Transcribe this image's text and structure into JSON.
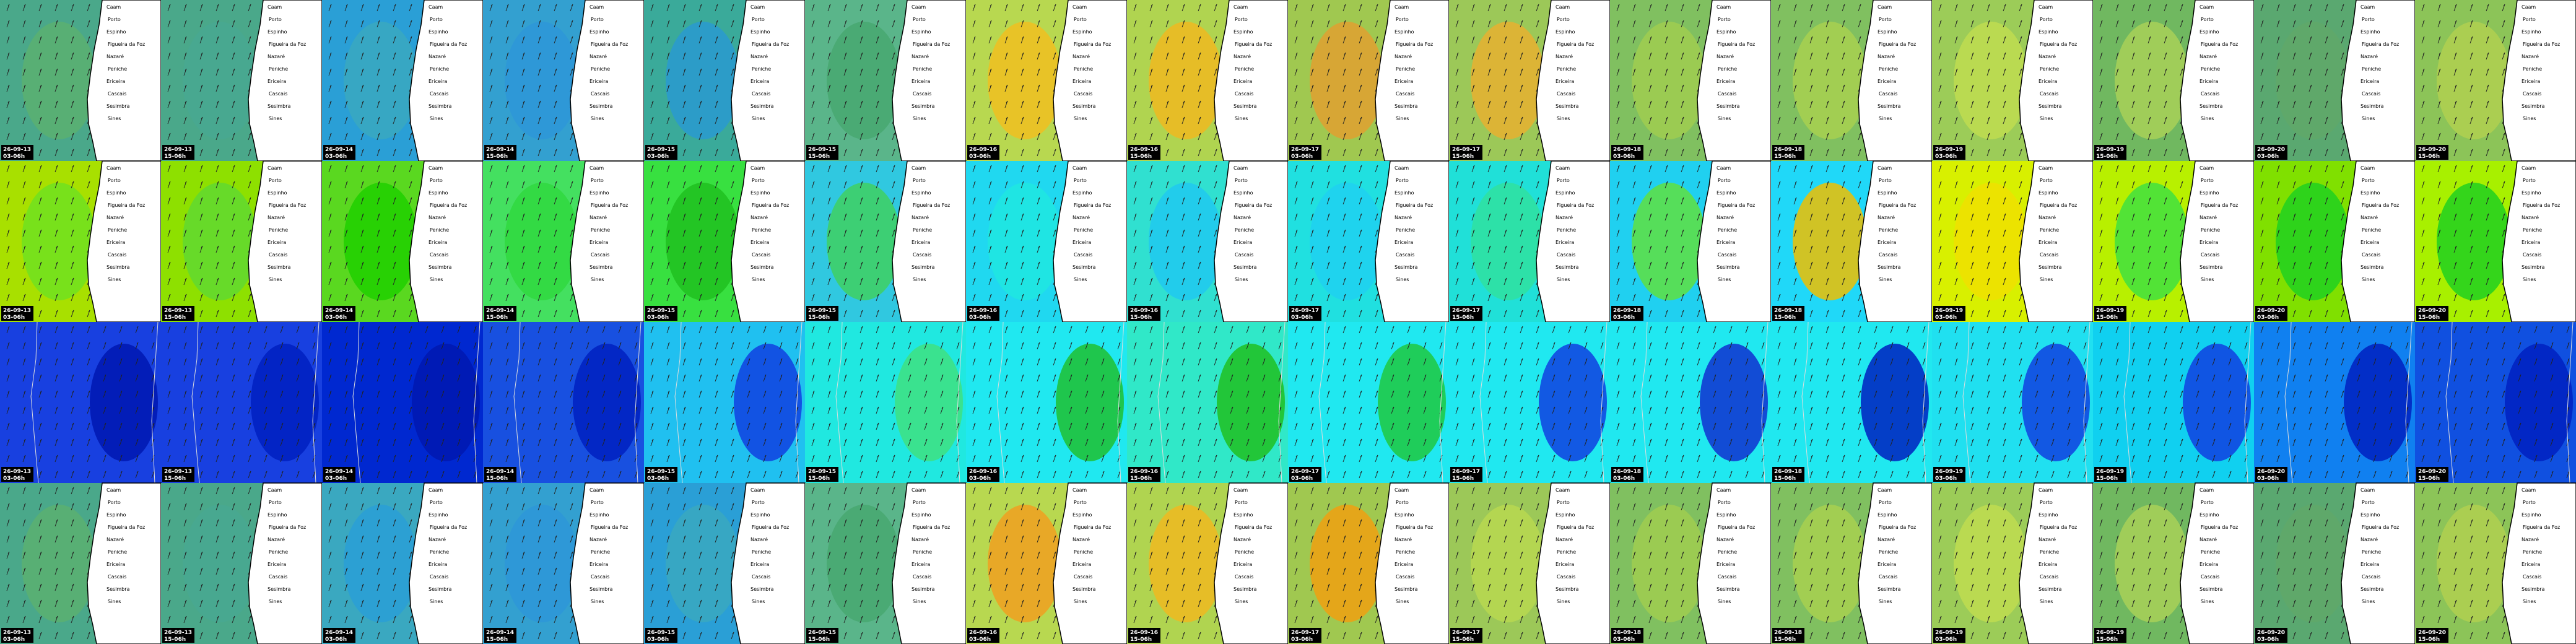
{
  "columns": [
    {
      "date": "26-09-13",
      "time": "03-06h"
    },
    {
      "date": "26-09-13",
      "time": "15-06h"
    },
    {
      "date": "26-09-14",
      "time": "03-06h"
    },
    {
      "date": "26-09-14",
      "time": "15-06h"
    },
    {
      "date": "26-09-15",
      "time": "03-06h"
    },
    {
      "date": "26-09-15",
      "time": "15-06h"
    },
    {
      "date": "26-09-16",
      "time": "03-06h"
    },
    {
      "date": "26-09-16",
      "time": "15-06h"
    },
    {
      "date": "26-09-17",
      "time": "03-06h"
    },
    {
      "date": "26-09-17",
      "time": "15-06h"
    },
    {
      "date": "26-09-18",
      "time": "03-06h"
    },
    {
      "date": "26-09-18",
      "time": "15-06h"
    },
    {
      "date": "26-09-19",
      "time": "03-06h"
    },
    {
      "date": "26-09-19",
      "time": "15-06h"
    },
    {
      "date": "26-09-20",
      "time": "03-06h"
    },
    {
      "date": "26-09-20",
      "time": "15-06h"
    }
  ],
  "places": [
    "Caam",
    "Porto",
    "Espinho",
    "Figueira da Foz",
    "Nazaré",
    "Peniche",
    "Ericeira",
    "Cascais",
    "Sesimbra",
    "Sines"
  ]
}
